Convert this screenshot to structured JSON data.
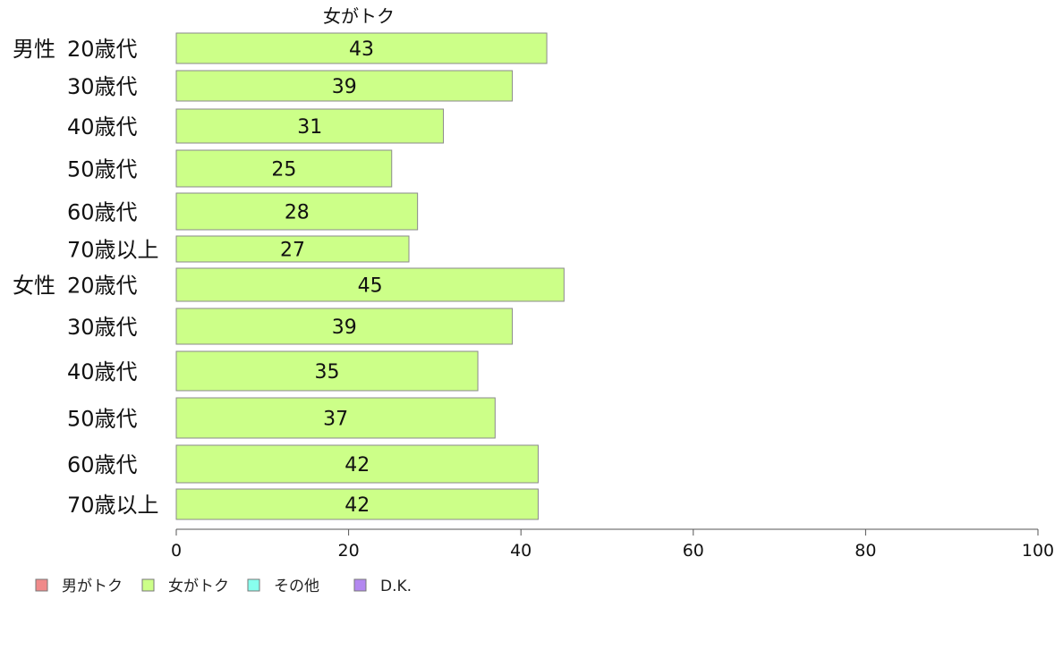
{
  "chart_data": {
    "type": "bar",
    "orientation": "horizontal",
    "title": "女がトク",
    "groups": [
      {
        "name": "男性",
        "categories": [
          "20歳代",
          "30歳代",
          "40歳代",
          "50歳代",
          "60歳代",
          "70歳以上"
        ]
      },
      {
        "name": "女性",
        "categories": [
          "20歳代",
          "30歳代",
          "40歳代",
          "50歳代",
          "60歳代",
          "70歳以上"
        ]
      }
    ],
    "series": [
      {
        "name": "女がトク",
        "color": "#ccff88",
        "values": [
          43,
          39,
          31,
          25,
          28,
          27,
          45,
          39,
          35,
          37,
          42,
          42
        ]
      }
    ],
    "xlim": [
      0,
      100
    ],
    "xticks": [
      0,
      20,
      40,
      60,
      80,
      100
    ],
    "legend": [
      {
        "label": "男がトク",
        "color": "#f08a8a"
      },
      {
        "label": "女がトク",
        "color": "#ccff88"
      },
      {
        "label": "その他",
        "color": "#88ffee"
      },
      {
        "label": "D.K.",
        "color": "#b388f0"
      }
    ],
    "legend_position": "bottom-left",
    "grid": false
  }
}
